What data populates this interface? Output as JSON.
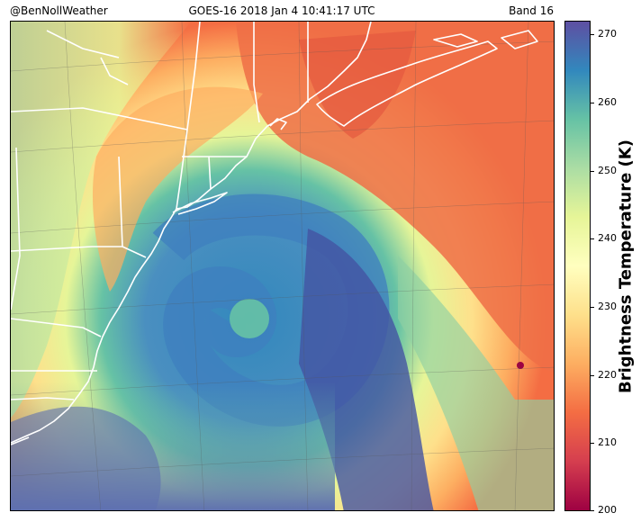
{
  "header": {
    "credit": "@BenNollWeather",
    "title": "GOES-16 2018 Jan 4 10:41:17 UTC",
    "band": "Band 16"
  },
  "colorbar": {
    "label": "Brightness Temperature (K)",
    "min": 200,
    "max": 272,
    "ticks": [
      200,
      210,
      220,
      230,
      240,
      250,
      260,
      270
    ],
    "tick_labels": [
      "200",
      "210",
      "220",
      "230",
      "240",
      "250",
      "260",
      "270"
    ],
    "colormap": "Spectral",
    "colors": [
      "#9e0142",
      "#d53e4f",
      "#f46d43",
      "#fdae61",
      "#fee08b",
      "#ffffbf",
      "#e6f598",
      "#abdda4",
      "#66c2a5",
      "#3288bd",
      "#5e4fa2"
    ]
  },
  "map": {
    "imagery": "infrared satellite imagery of a strong nor'easter off the US east coast",
    "boundary_color": "#ffffff"
  }
}
